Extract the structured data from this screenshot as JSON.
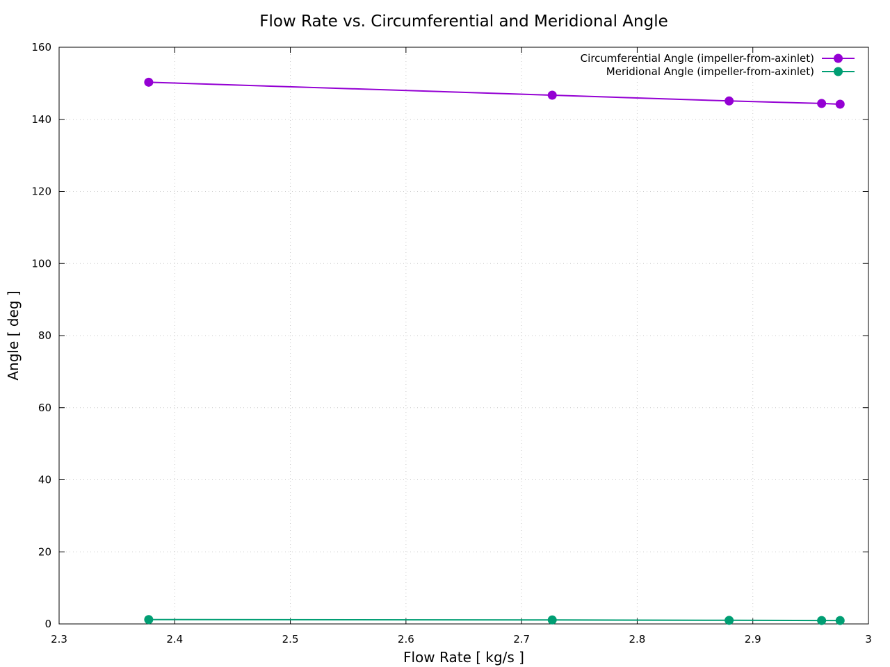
{
  "chart_data": {
    "type": "line",
    "title": "Flow Rate vs. Circumferential and Meridional Angle",
    "xlabel": "Flow Rate [ kg/s ]",
    "ylabel": "Angle [ deg ]",
    "xlim": [
      2.3,
      3.0
    ],
    "ylim": [
      0,
      160
    ],
    "xticks": [
      "2.3",
      "2.4",
      "2.5",
      "2.6",
      "2.7",
      "2.8",
      "2.9",
      "3"
    ],
    "yticks": [
      "0",
      "20",
      "40",
      "60",
      "80",
      "100",
      "120",
      "140",
      "160"
    ],
    "grid": true,
    "legend_position": "top-right",
    "series": [
      {
        "name": "Circumferential Angle (impeller-from-axinlet)",
        "color": "#9400d3",
        "marker": "circle",
        "x": [
          2.3775,
          2.7265,
          2.8795,
          2.9595,
          2.9755
        ],
        "y": [
          150.3,
          146.7,
          145.1,
          144.4,
          144.2
        ]
      },
      {
        "name": "Meridional Angle (impeller-from-axinlet)",
        "color": "#009e73",
        "marker": "circle",
        "x": [
          2.3775,
          2.7265,
          2.8795,
          2.9595,
          2.9755
        ],
        "y": [
          1.2,
          1.1,
          1.0,
          0.95,
          0.95
        ]
      }
    ]
  }
}
